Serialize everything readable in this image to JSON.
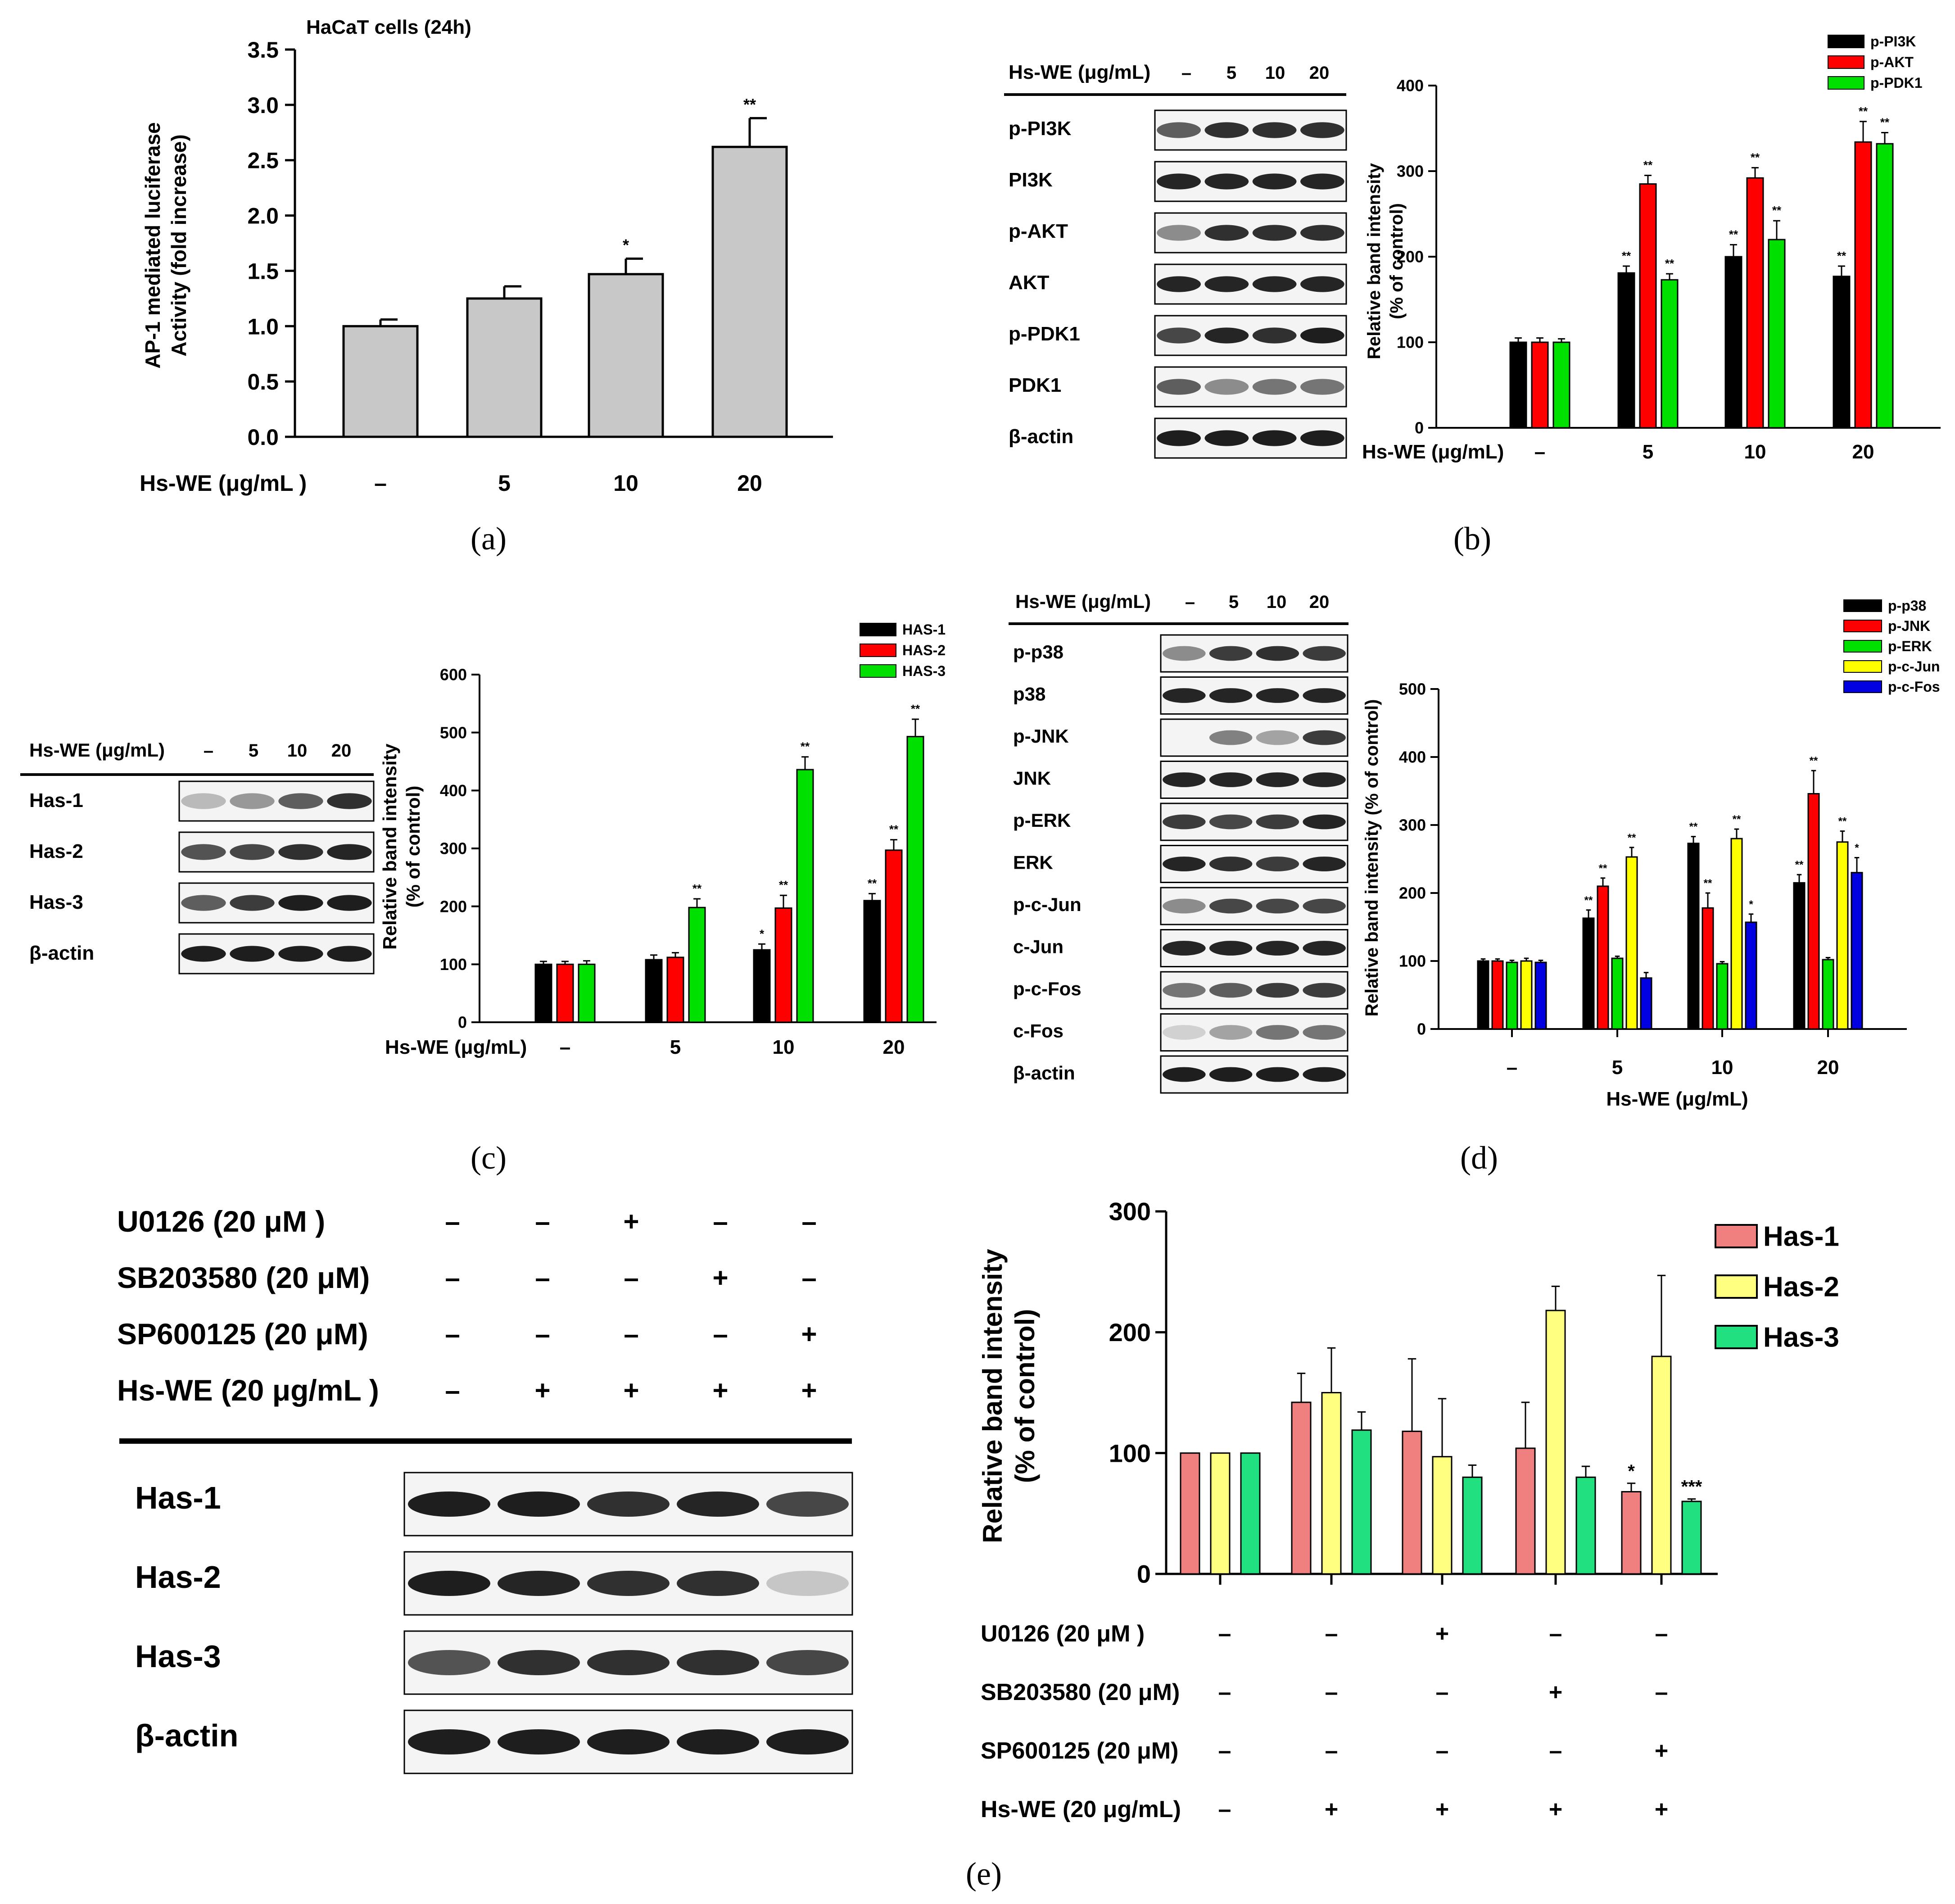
{
  "panels": {
    "a": {
      "label": "(a)",
      "chart_data": {
        "type": "bar",
        "title": "HaCaT cells (24h)",
        "ylabel": "AP-1 mediated luciferase Activity (fold increase)",
        "ylabel_lines": [
          "AP-1 mediated luciferase",
          "Activity (fold increase)"
        ],
        "xlabel": "Hs-WE (μg/mL )",
        "categories": [
          "–",
          "5",
          "10",
          "20"
        ],
        "values": [
          1.0,
          1.25,
          1.47,
          2.62
        ],
        "errors": [
          0.06,
          0.11,
          0.14,
          0.26
        ],
        "significance": [
          "",
          "",
          "*",
          "**"
        ],
        "ylim": [
          0,
          3.5
        ],
        "yticks": [
          "0.0",
          "0.5",
          "1.0",
          "1.5",
          "2.0",
          "2.5",
          "3.0",
          "3.5"
        ],
        "bar_color": "#c8c8c8"
      }
    },
    "b": {
      "label": "(b)",
      "blot": {
        "header": "Hs-WE (μg/mL)",
        "lanes": [
          "–",
          "5",
          "10",
          "20"
        ],
        "rows": [
          "p-PI3K",
          "PI3K",
          "p-AKT",
          "AKT",
          "p-PDK1",
          "PDK1",
          "β-actin"
        ]
      },
      "chart_data": {
        "type": "bar",
        "ylabel": "Relative  band intensity (% of control)",
        "ylabel_lines": [
          "Relative  band intensity",
          "(% of control)"
        ],
        "xlabel": "Hs-WE (μg/mL)",
        "categories": [
          "–",
          "5",
          "10",
          "20"
        ],
        "ylim": [
          0,
          400
        ],
        "yticks": [
          "0",
          "100",
          "200",
          "300",
          "400"
        ],
        "legend_position": "top-right",
        "series": [
          {
            "name": "p-PI3K",
            "color": "#000000",
            "values": [
              100,
              181,
              200,
              177
            ],
            "errors": [
              5,
              8,
              14,
              12
            ],
            "significance": [
              "",
              "**",
              "**",
              "**"
            ]
          },
          {
            "name": "p-AKT",
            "color": "#ff0000",
            "values": [
              100,
              285,
              292,
              334
            ],
            "errors": [
              5,
              10,
              12,
              24
            ],
            "significance": [
              "",
              "**",
              "**",
              "**"
            ]
          },
          {
            "name": "p-PDK1",
            "color": "#00e000",
            "values": [
              100,
              173,
              220,
              332
            ],
            "errors": [
              4,
              7,
              22,
              13
            ],
            "significance": [
              "",
              "**",
              "**",
              "**"
            ]
          }
        ]
      }
    },
    "c": {
      "label": "(c)",
      "blot": {
        "header": "Hs-WE (μg/mL)",
        "lanes": [
          "–",
          "5",
          "10",
          "20"
        ],
        "rows": [
          "Has-1",
          "Has-2",
          "Has-3",
          "β-actin"
        ]
      },
      "chart_data": {
        "type": "bar",
        "ylabel": "Relative  band intensity (% of control)",
        "ylabel_lines": [
          "Relative  band intensity",
          "(% of control)"
        ],
        "xlabel": "Hs-WE (μg/mL)",
        "categories": [
          "–",
          "5",
          "10",
          "20"
        ],
        "ylim": [
          0,
          600
        ],
        "yticks": [
          "0",
          "100",
          "200",
          "300",
          "400",
          "500",
          "600"
        ],
        "legend_position": "top-right",
        "series": [
          {
            "name": "HAS-1",
            "color": "#000000",
            "values": [
              100,
              108,
              125,
              210
            ],
            "errors": [
              5,
              8,
              10,
              12
            ],
            "significance": [
              "",
              "",
              "*",
              "**"
            ]
          },
          {
            "name": "HAS-2",
            "color": "#ff0000",
            "values": [
              100,
              112,
              197,
              297
            ],
            "errors": [
              5,
              8,
              22,
              18
            ],
            "significance": [
              "",
              "",
              "**",
              "**"
            ]
          },
          {
            "name": "HAS-3",
            "color": "#00e000",
            "values": [
              100,
              198,
              436,
              493
            ],
            "errors": [
              6,
              15,
              22,
              30
            ],
            "significance": [
              "",
              "**",
              "**",
              "**"
            ]
          }
        ]
      }
    },
    "d": {
      "label": "(d)",
      "blot": {
        "header": "Hs-WE (μg/mL)",
        "lanes": [
          "–",
          "5",
          "10",
          "20"
        ],
        "rows": [
          "p-p38",
          "p38",
          "p-JNK",
          "JNK",
          "p-ERK",
          "ERK",
          "p-c-Jun",
          "c-Jun",
          "p-c-Fos",
          "c-Fos",
          "β-actin"
        ]
      },
      "chart_data": {
        "type": "bar",
        "ylabel": "Relative  band intensity (% of control)",
        "xlabel": "Hs-WE (μg/mL)",
        "categories": [
          "–",
          "5",
          "10",
          "20"
        ],
        "ylim": [
          0,
          500
        ],
        "yticks": [
          "0",
          "100",
          "200",
          "300",
          "400",
          "500"
        ],
        "legend_position": "top-right",
        "series": [
          {
            "name": "p-p38",
            "color": "#000000",
            "values": [
              100,
              163,
              273,
              215
            ],
            "errors": [
              3,
              12,
              10,
              12
            ],
            "significance": [
              "",
              "**",
              "**",
              "**"
            ]
          },
          {
            "name": "p-JNK",
            "color": "#ff0000",
            "values": [
              100,
              210,
              178,
              346
            ],
            "errors": [
              3,
              12,
              22,
              34
            ],
            "significance": [
              "",
              "**",
              "**",
              "**"
            ]
          },
          {
            "name": "p-ERK",
            "color": "#00e000",
            "values": [
              98,
              104,
              96,
              102
            ],
            "errors": [
              3,
              3,
              3,
              3
            ],
            "significance": [
              "",
              "",
              "",
              ""
            ]
          },
          {
            "name": "p-c-Jun",
            "color": "#ffff00",
            "values": [
              100,
              253,
              280,
              275
            ],
            "errors": [
              4,
              14,
              14,
              16
            ],
            "significance": [
              "",
              "**",
              "**",
              "**"
            ]
          },
          {
            "name": "p-c-Fos",
            "color": "#0000e0",
            "values": [
              98,
              75,
              157,
              230
            ],
            "errors": [
              3,
              8,
              12,
              22
            ],
            "significance": [
              "",
              "",
              "*",
              "*"
            ]
          }
        ]
      }
    },
    "e": {
      "label": "(e)",
      "blot": {
        "treatments": [
          {
            "name": "U0126 (20 μM )",
            "signs": [
              "–",
              "–",
              "+",
              "–",
              "–"
            ]
          },
          {
            "name": "SB203580 (20 μM)",
            "signs": [
              "–",
              "–",
              "–",
              "+",
              "–"
            ]
          },
          {
            "name": "SP600125 (20 μM)",
            "signs": [
              "–",
              "–",
              "–",
              "–",
              "+"
            ]
          },
          {
            "name": "Hs-WE (20 μg/mL )",
            "signs": [
              "–",
              "+",
              "+",
              "+",
              "+"
            ]
          }
        ],
        "rows": [
          "Has-1",
          "Has-2",
          "Has-3",
          "β-actin"
        ]
      },
      "chart_data": {
        "type": "bar",
        "ylabel": "Relative band intensity (% of control)",
        "ylabel_lines": [
          "Relative band intensity",
          "(% of control)"
        ],
        "ylim": [
          0,
          300
        ],
        "yticks": [
          "0",
          "100",
          "200",
          "300"
        ],
        "legend_position": "top-right",
        "treatments": [
          {
            "name": "U0126 (20 μM )",
            "signs": [
              "–",
              "–",
              "+",
              "–",
              "–"
            ]
          },
          {
            "name": "SB203580 (20 μM)",
            "signs": [
              "–",
              "–",
              "–",
              "+",
              "–"
            ]
          },
          {
            "name": "SP600125 (20 μM)",
            "signs": [
              "–",
              "–",
              "–",
              "–",
              "+"
            ]
          },
          {
            "name": "Hs-WE (20 μg/mL)",
            "signs": [
              "–",
              "+",
              "+",
              "+",
              "+"
            ]
          }
        ],
        "series": [
          {
            "name": "Has-1",
            "color": "#f08080",
            "values": [
              100,
              142,
              118,
              104,
              68
            ],
            "errors": [
              0,
              24,
              60,
              38,
              7
            ],
            "significance": [
              "",
              "",
              "",
              "",
              "*"
            ]
          },
          {
            "name": "Has-2",
            "color": "#ffff80",
            "values": [
              100,
              150,
              97,
              218,
              180
            ],
            "errors": [
              0,
              37,
              48,
              20,
              67
            ],
            "significance": [
              "",
              "",
              "",
              "",
              ""
            ]
          },
          {
            "name": "Has-3",
            "color": "#20e080",
            "values": [
              100,
              119,
              80,
              80,
              60
            ],
            "errors": [
              0,
              15,
              10,
              9,
              2
            ],
            "significance": [
              "",
              "",
              "",
              "",
              "***"
            ]
          }
        ]
      }
    }
  }
}
